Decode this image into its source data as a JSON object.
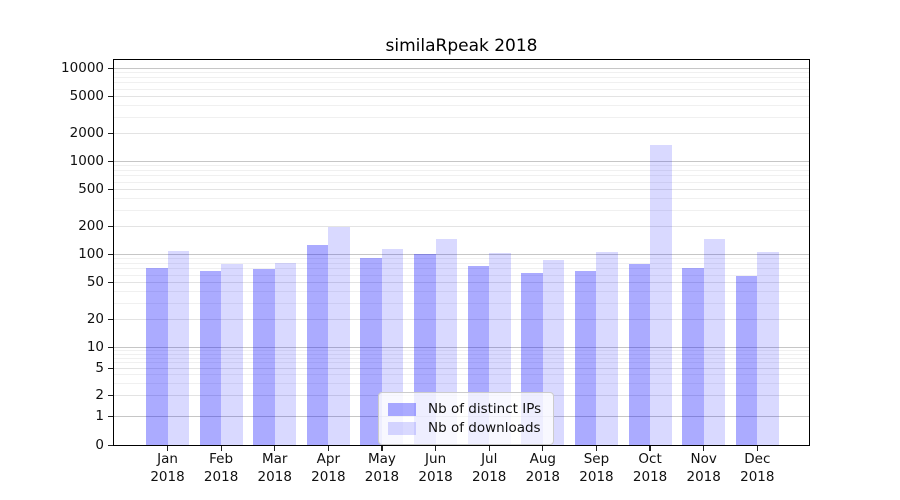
{
  "chart_data": {
    "type": "bar",
    "title": "similaRpeak 2018",
    "categories": [
      "Jan",
      "Feb",
      "Mar",
      "Apr",
      "May",
      "Jun",
      "Jul",
      "Aug",
      "Sep",
      "Oct",
      "Nov",
      "Dec"
    ],
    "category_year": "2018",
    "series": [
      {
        "name": "Nb of distinct IPs",
        "color": "rgba(0,0,255,0.33)",
        "values": [
          70,
          65,
          69,
          125,
          90,
          100,
          74,
          62,
          65,
          78,
          70,
          58
        ]
      },
      {
        "name": "Nb of downloads",
        "color": "rgba(0,0,255,0.15)",
        "values": [
          107,
          78,
          80,
          195,
          114,
          145,
          102,
          87,
          106,
          1500,
          145,
          106
        ]
      }
    ],
    "yscale": "log (compressed below 10, linear 0-1)",
    "ytick_labels": [
      "0",
      "1",
      "2",
      "5",
      "10",
      "20",
      "50",
      "100",
      "200",
      "500",
      "1000",
      "2000",
      "5000",
      "10000"
    ],
    "ylim": [
      0,
      14000
    ],
    "grid": true,
    "legend_position": "lower center"
  }
}
